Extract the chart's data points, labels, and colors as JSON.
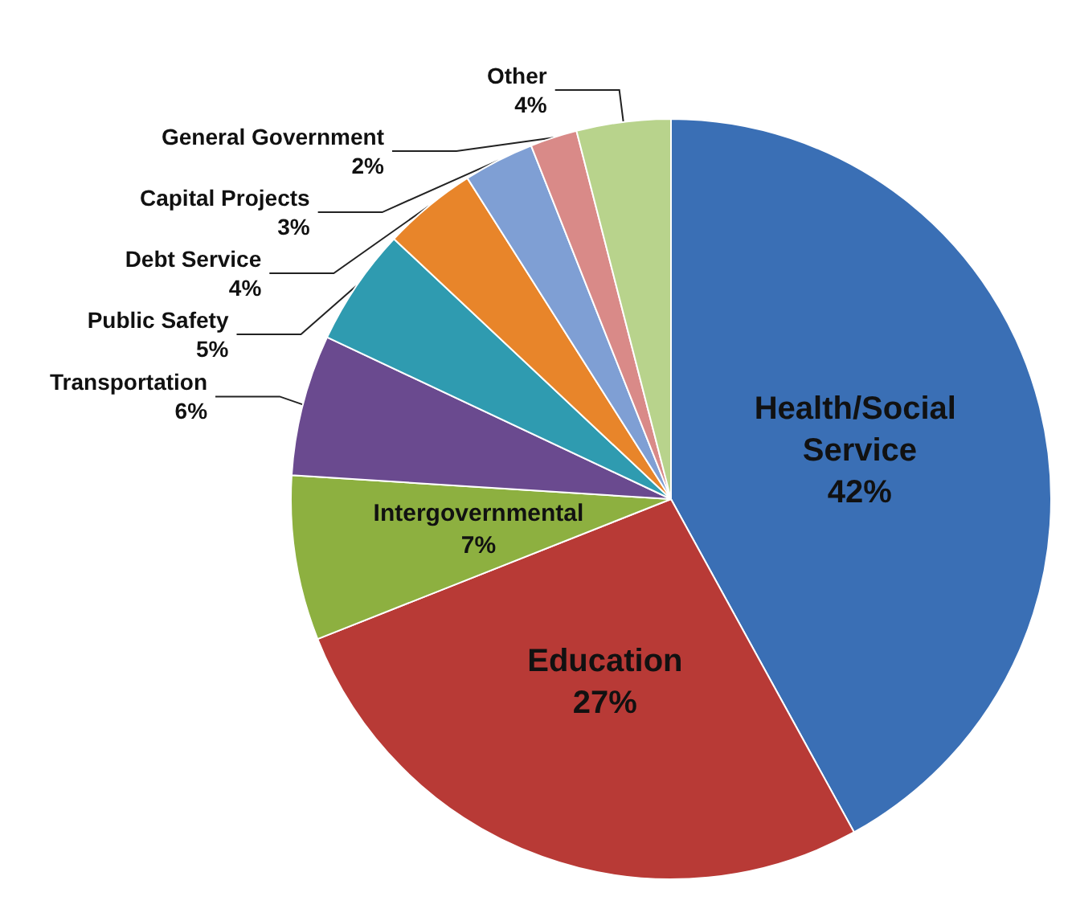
{
  "chart_data": {
    "type": "pie",
    "categories": [
      "Health/Social Service",
      "Education",
      "Intergovernmental",
      "Transportation",
      "Public Safety",
      "Debt Service",
      "Capital Projects",
      "General Government",
      "Other"
    ],
    "values": [
      42,
      27,
      7,
      6,
      5,
      4,
      3,
      2,
      4
    ],
    "colors": [
      "#3a6fb5",
      "#b83a36",
      "#8db040",
      "#6a4a8f",
      "#2f9bb0",
      "#e8852a",
      "#7f9fd4",
      "#d98a88",
      "#b8d38c"
    ],
    "value_labels": [
      "42%",
      "27%",
      "7%",
      "6%",
      "5%",
      "4%",
      "3%",
      "2%",
      "4%"
    ],
    "legend": false
  }
}
